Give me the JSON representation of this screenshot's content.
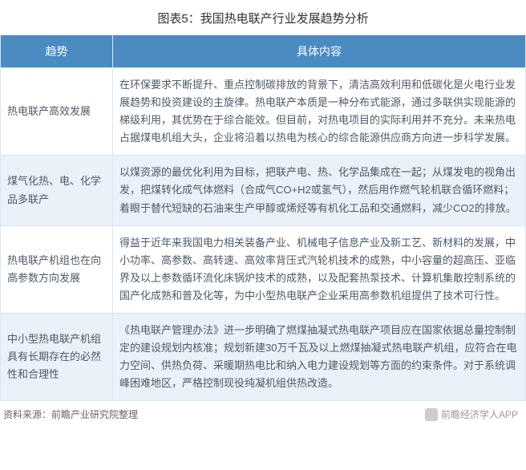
{
  "title": "图表5：我国热电联产行业发展趋势分析",
  "header_bg_color": "#4a8bc2",
  "header_text_color": "#ffffff",
  "row_bg_white": "#ffffff",
  "row_bg_alt": "#eaf1f8",
  "border_color": "#d9e6f2",
  "text_color": "#4d5a66",
  "columns": {
    "trend": "趋势",
    "content": "具体内容"
  },
  "col_widths": {
    "trend": 140
  },
  "rows": [
    {
      "trend": "热电联产高效发展",
      "content": "在环保要求不断提升、重点控制碳排放的背景下，清洁高效利用和低碳化是火电行业发展趋势和投资建设的主旋律。热电联产本质是一种分布式能源，通过多联供实现能源的梯级利用，其优势在于综合能效。但目前，对热电项目的实际利用并不充分。未来热电占据煤电机组大头，企业将沿着以热电为核心的综合能源供应商方向进一步科学发展。"
    },
    {
      "trend": "煤气化热、电、化学品多联产",
      "content": "以煤资源的最优化利用为目标，把联产电、热、化学品集成在一起；从煤发电的视角出发，把煤转化成气体燃料（合成气CO+H2或氢气），然后用作燃气轮机联合循环燃料；着眼于替代短缺的石油来生产甲醇或烯烃等有机化工品和交通燃料，减少CO2的排放。"
    },
    {
      "trend": "热电联产机组也在向高参数方向发展",
      "content": "得益于近年来我国电力相关装备产业、机械电子信息产业及新工艺、新材料的发展，中小功率、高参数、高转速、高效率背压式汽轮机技术的成熟，中小容量的超高压、亚临界及以上参数循环流化床锅炉技术的成熟，以及配套热泵技术、计算机集散控制系统的国产化成熟和普及化等，为中小型热电联产企业采用高参数机组提供了技术可行性。"
    },
    {
      "trend": "中小型热电联产机组具有长期存在的必然性和合理性",
      "content": "《热电联产管理办法》进一步明确了燃煤抽凝式热电联产项目应在国家依据总量控制制定的建设规划内核准；规划新建30万千瓦及以上燃煤抽凝式热电联产机组，应符合在电力空间、供热负荷、采暖期热电比和纳入电力建设规划等方面的约束条件。对于系统调峰困难地区，严格控制现役纯凝机组供热改造。"
    }
  ],
  "footer": {
    "source": "资料来源：前瞻产业研究院整理",
    "watermark": "前瞻经济学人APP"
  },
  "fonts": {
    "title_size": 15,
    "header_size": 14,
    "body_size": 13,
    "footer_size": 12
  }
}
